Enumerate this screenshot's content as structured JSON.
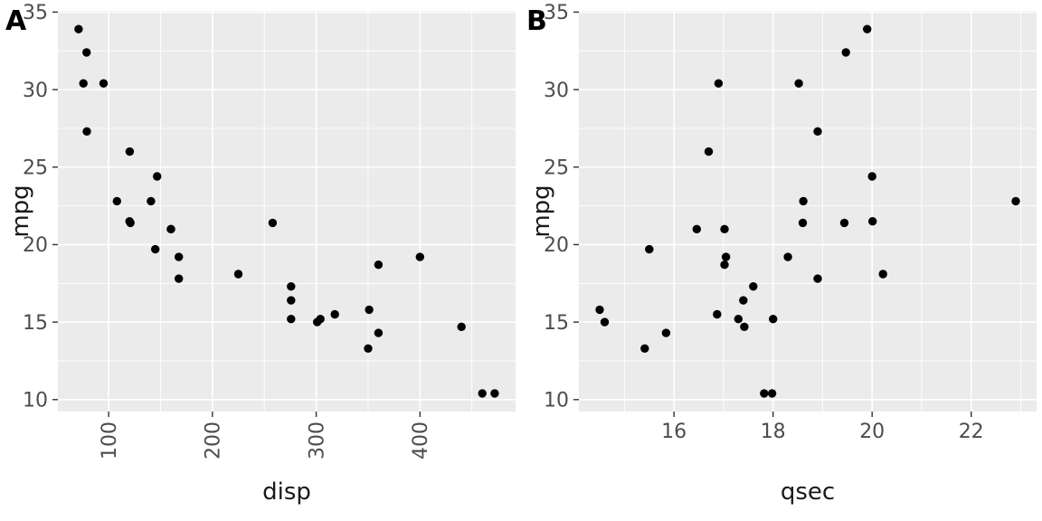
{
  "figure": {
    "background": "#FFFFFF",
    "panel_labels": [
      "A",
      "B"
    ]
  },
  "theme": {
    "panel_background": "#EBEBEB",
    "grid_color": "#FFFFFF",
    "point_color": "#000000",
    "tick_label_color": "#4D4D4D",
    "axis_title_color": "#1A1A1A",
    "panel_label_color": "#000000",
    "tick_mark_color": "#333333"
  },
  "chart_data": [
    {
      "type": "scatter",
      "panel_label": "A",
      "xlabel": "disp",
      "ylabel": "mpg",
      "x_ticks": [
        100,
        200,
        300,
        400
      ],
      "y_ticks": [
        10,
        15,
        20,
        25,
        30,
        35
      ],
      "xlim": [
        51.1,
        492.1
      ],
      "ylim": [
        9.23,
        35.08
      ],
      "x_tick_angle": 90,
      "grid": "major+minor",
      "legend": "none",
      "x": [
        160,
        160,
        108,
        258,
        360,
        225,
        360,
        146.7,
        140.8,
        167.6,
        167.6,
        275.8,
        275.8,
        275.8,
        472,
        460,
        440,
        78.7,
        75.7,
        71.1,
        120.1,
        318,
        304,
        350,
        400,
        79,
        120.3,
        95.1,
        351,
        145,
        301,
        121
      ],
      "y": [
        21,
        21,
        22.8,
        21.4,
        18.7,
        18.1,
        14.3,
        24.4,
        22.8,
        19.2,
        17.8,
        16.4,
        17.3,
        15.2,
        10.4,
        10.4,
        14.7,
        32.4,
        30.4,
        33.9,
        21.5,
        15.5,
        15.2,
        13.3,
        19.2,
        27.3,
        26,
        30.4,
        15.8,
        19.7,
        15,
        21.4
      ]
    },
    {
      "type": "scatter",
      "panel_label": "B",
      "xlabel": "qsec",
      "ylabel": "mpg",
      "x_ticks": [
        16,
        18,
        20,
        22
      ],
      "y_ticks": [
        10,
        15,
        20,
        25,
        30,
        35
      ],
      "xlim": [
        14.08,
        23.32
      ],
      "ylim": [
        9.23,
        35.08
      ],
      "x_tick_angle": 0,
      "grid": "major+minor",
      "legend": "none",
      "x": [
        16.46,
        17.02,
        18.61,
        19.44,
        17.02,
        20.22,
        15.84,
        20,
        22.9,
        18.3,
        18.9,
        17.4,
        17.6,
        18,
        17.98,
        17.82,
        17.42,
        19.47,
        18.52,
        19.9,
        20.01,
        16.87,
        17.3,
        15.41,
        17.05,
        18.9,
        16.7,
        16.9,
        14.5,
        15.5,
        14.6,
        18.6
      ],
      "y": [
        21,
        21,
        22.8,
        21.4,
        18.7,
        18.1,
        14.3,
        24.4,
        22.8,
        19.2,
        17.8,
        16.4,
        17.3,
        15.2,
        10.4,
        10.4,
        14.7,
        32.4,
        30.4,
        33.9,
        21.5,
        15.5,
        15.2,
        13.3,
        19.2,
        27.3,
        26,
        30.4,
        15.8,
        19.7,
        15,
        21.4
      ]
    }
  ]
}
